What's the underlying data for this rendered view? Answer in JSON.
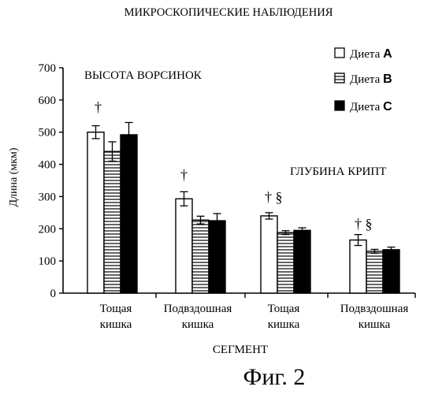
{
  "chart_data": {
    "type": "bar",
    "title": "МИКРОСКОПИЧЕСКИЕ НАБЛЮДЕНИЯ",
    "xlabel": "СЕГМЕНТ",
    "ylabel": "Длина (мкм)",
    "ylim": [
      0,
      700
    ],
    "yticks": [
      0,
      100,
      200,
      300,
      400,
      500,
      600,
      700
    ],
    "grid": false,
    "legend_position": "top-right",
    "categories": [
      [
        "Тощая",
        "кишка"
      ],
      [
        "Подвздошная",
        "кишка"
      ],
      [
        "Тощая",
        "кишка"
      ],
      [
        "Подвздошная",
        "кишка"
      ]
    ],
    "group_labels": [
      "ВЫСОТА ВОРСИНОК",
      "ГЛУБИНА КРИПТ"
    ],
    "series": [
      {
        "name": "Диета",
        "letter": "A",
        "pattern": "white",
        "values": [
          500,
          293,
          240,
          165
        ],
        "errors": [
          20,
          22,
          10,
          17
        ]
      },
      {
        "name": "Диета",
        "letter": "B",
        "pattern": "stripes",
        "values": [
          440,
          227,
          188,
          130
        ],
        "errors": [
          30,
          12,
          6,
          6
        ]
      },
      {
        "name": "Диета",
        "letter": "C",
        "pattern": "black",
        "values": [
          492,
          225,
          195,
          135
        ],
        "errors": [
          38,
          22,
          8,
          8
        ]
      }
    ],
    "annotations": [
      "†",
      "†",
      "† §",
      "† §"
    ]
  },
  "figure_caption": "Фиг. 2"
}
